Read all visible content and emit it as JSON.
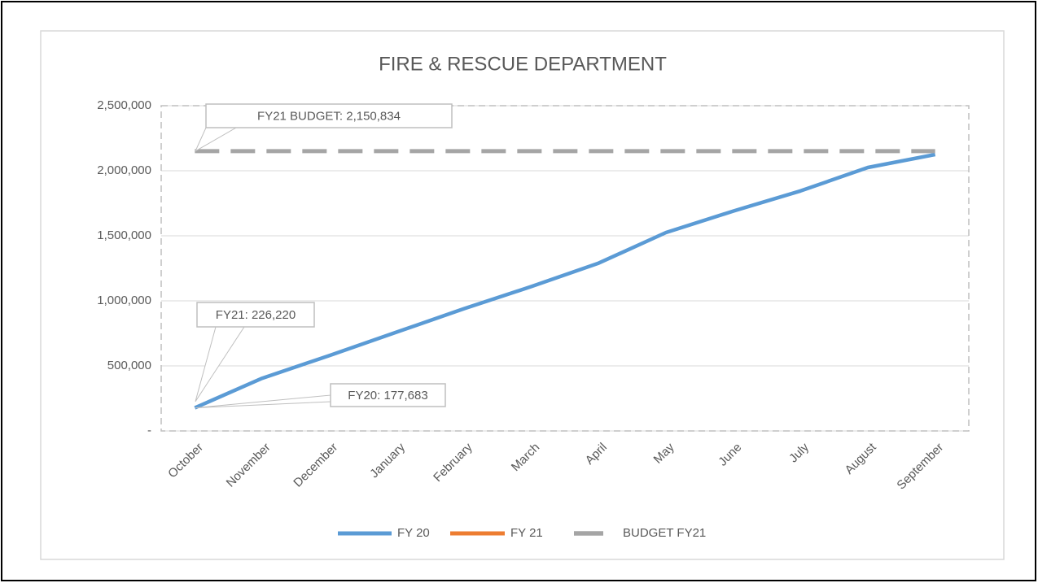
{
  "chart_data": {
    "type": "line",
    "title": "FIRE & RESCUE DEPARTMENT",
    "categories": [
      "October",
      "November",
      "December",
      "January",
      "February",
      "March",
      "April",
      "May",
      "June",
      "July",
      "August",
      "September"
    ],
    "series": [
      {
        "name": "FY 20",
        "color": "#5b9bd5",
        "values": [
          177683,
          405000,
          580000,
          760000,
          940000,
          1110000,
          1290000,
          1525000,
          1690000,
          1845000,
          2025000,
          2125000
        ],
        "value_labels": [
          "FY20: 177,683",
          null,
          null,
          null,
          null,
          null,
          null,
          null,
          null,
          null,
          null,
          null
        ]
      },
      {
        "name": "FY 21",
        "color": "#ed7d31",
        "values": [
          226220,
          null,
          null,
          null,
          null,
          null,
          null,
          null,
          null,
          null,
          null,
          null
        ],
        "value_labels": [
          "FY21: 226,220",
          null,
          null,
          null,
          null,
          null,
          null,
          null,
          null,
          null,
          null,
          null
        ]
      },
      {
        "name": "BUDGET FY21",
        "color": "#a5a5a5",
        "values": [
          2150834,
          2150834,
          2150834,
          2150834,
          2150834,
          2150834,
          2150834,
          2150834,
          2150834,
          2150834,
          2150834,
          2150834
        ],
        "value_labels": [
          "FY21 BUDGET: 2,150,834",
          null,
          null,
          null,
          null,
          null,
          null,
          null,
          null,
          null,
          null,
          null
        ]
      }
    ],
    "ylim": [
      0,
      2500000
    ],
    "yticks": [
      {
        "value": 0,
        "label": "-"
      },
      {
        "value": 500000,
        "label": "500,000"
      },
      {
        "value": 1000000,
        "label": "1,000,000"
      },
      {
        "value": 1500000,
        "label": "1,500,000"
      },
      {
        "value": 2000000,
        "label": "2,000,000"
      },
      {
        "value": 2500000,
        "label": "2,500,000"
      }
    ],
    "grid": true,
    "legend": "bottom"
  }
}
